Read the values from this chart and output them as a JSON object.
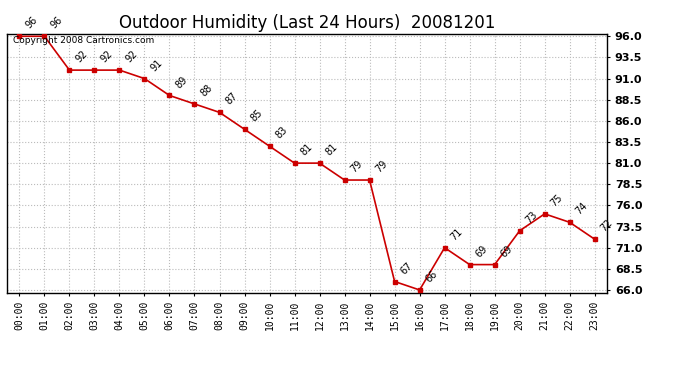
{
  "title": "Outdoor Humidity (Last 24 Hours)  20081201",
  "copyright_text": "Copyright 2008 Cartronics.com",
  "x_labels": [
    "00:00",
    "01:00",
    "02:00",
    "03:00",
    "04:00",
    "05:00",
    "06:00",
    "07:00",
    "08:00",
    "09:00",
    "10:00",
    "11:00",
    "12:00",
    "13:00",
    "14:00",
    "15:00",
    "16:00",
    "17:00",
    "18:00",
    "19:00",
    "20:00",
    "21:00",
    "22:00",
    "23:00"
  ],
  "x_values": [
    0,
    1,
    2,
    3,
    4,
    5,
    6,
    7,
    8,
    9,
    10,
    11,
    12,
    13,
    14,
    15,
    16,
    17,
    18,
    19,
    20,
    21,
    22,
    23
  ],
  "y_values": [
    96,
    96,
    92,
    92,
    92,
    91,
    89,
    88,
    87,
    85,
    83,
    81,
    81,
    79,
    79,
    67,
    66,
    71,
    69,
    69,
    73,
    75,
    74,
    72
  ],
  "point_labels": [
    "96",
    "96",
    "92",
    "92",
    "92",
    "91",
    "89",
    "88",
    "87",
    "85",
    "83",
    "81",
    "81",
    "79",
    "79",
    "67",
    "66",
    "71",
    "69",
    "69",
    "73",
    "75",
    "74",
    "72"
  ],
  "line_color": "#cc0000",
  "marker_color": "#cc0000",
  "background_color": "#ffffff",
  "grid_color": "#bbbbbb",
  "title_fontsize": 12,
  "ylim_min": 66.0,
  "ylim_max": 96.0,
  "right_yticks": [
    66.0,
    68.5,
    71.0,
    73.5,
    76.0,
    78.5,
    81.0,
    83.5,
    86.0,
    88.5,
    91.0,
    93.5,
    96.0
  ]
}
